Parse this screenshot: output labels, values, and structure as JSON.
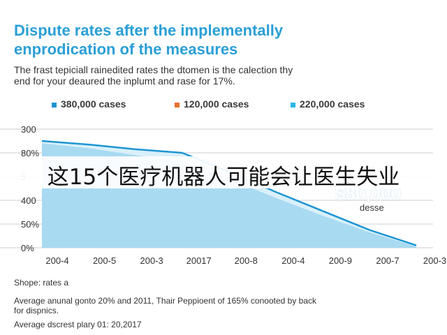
{
  "title_line1": "Dispute rates after the implementally",
  "title_line2": "enprodication of the measures",
  "subtitle_line1": "The frast tepiciall rainedited rates the dtomen is the calection thy",
  "subtitle_line2": "end for your deaured the inplumt and rase for 17%.",
  "legend": [
    {
      "label": "380,000 cases",
      "color": "#1a93d0"
    },
    {
      "label": "120,000 cases",
      "color": "#e8702a"
    },
    {
      "label": "220,000 cases",
      "color": "#29b6e8"
    }
  ],
  "overlay_text": "这15个医疗机器人可能会让医生失业",
  "annotation": {
    "value": "$80,000",
    "label": "desse"
  },
  "footer": {
    "line1": "Shope: rates a",
    "line2": "Average anunal gonto 20% and 2011, Thair Peppioent of 165% conooted by back",
    "line3": "for dispnics.",
    "line4": "Average dscrest plary 01: 20,2017"
  },
  "colors": {
    "title": "#2a9fd6",
    "line": "#1e95d3",
    "area": "#9fd6f0",
    "area_light": "#d6eefa",
    "grid": "#cccccc"
  },
  "chart_data": {
    "type": "area",
    "title": "Dispute rates after the implementally enprodication of the measures",
    "categories": [
      "200-4",
      "200-5",
      "200-3",
      "20017",
      "200-8",
      "200-4",
      "200-9",
      "200-7",
      "200-3"
    ],
    "y_tick_labels": [
      "300",
      "80%",
      "5",
      "400",
      "50%",
      "0%"
    ],
    "ylim": [
      0,
      100
    ],
    "series": [
      {
        "name": "380,000 cases",
        "values": [
          90,
          87,
          83,
          80,
          64,
          47,
          31,
          15,
          2
        ]
      },
      {
        "name": "220,000 cases",
        "values": [
          88,
          84,
          78,
          73,
          58,
          42,
          27,
          13,
          1
        ]
      }
    ],
    "grid": true
  }
}
